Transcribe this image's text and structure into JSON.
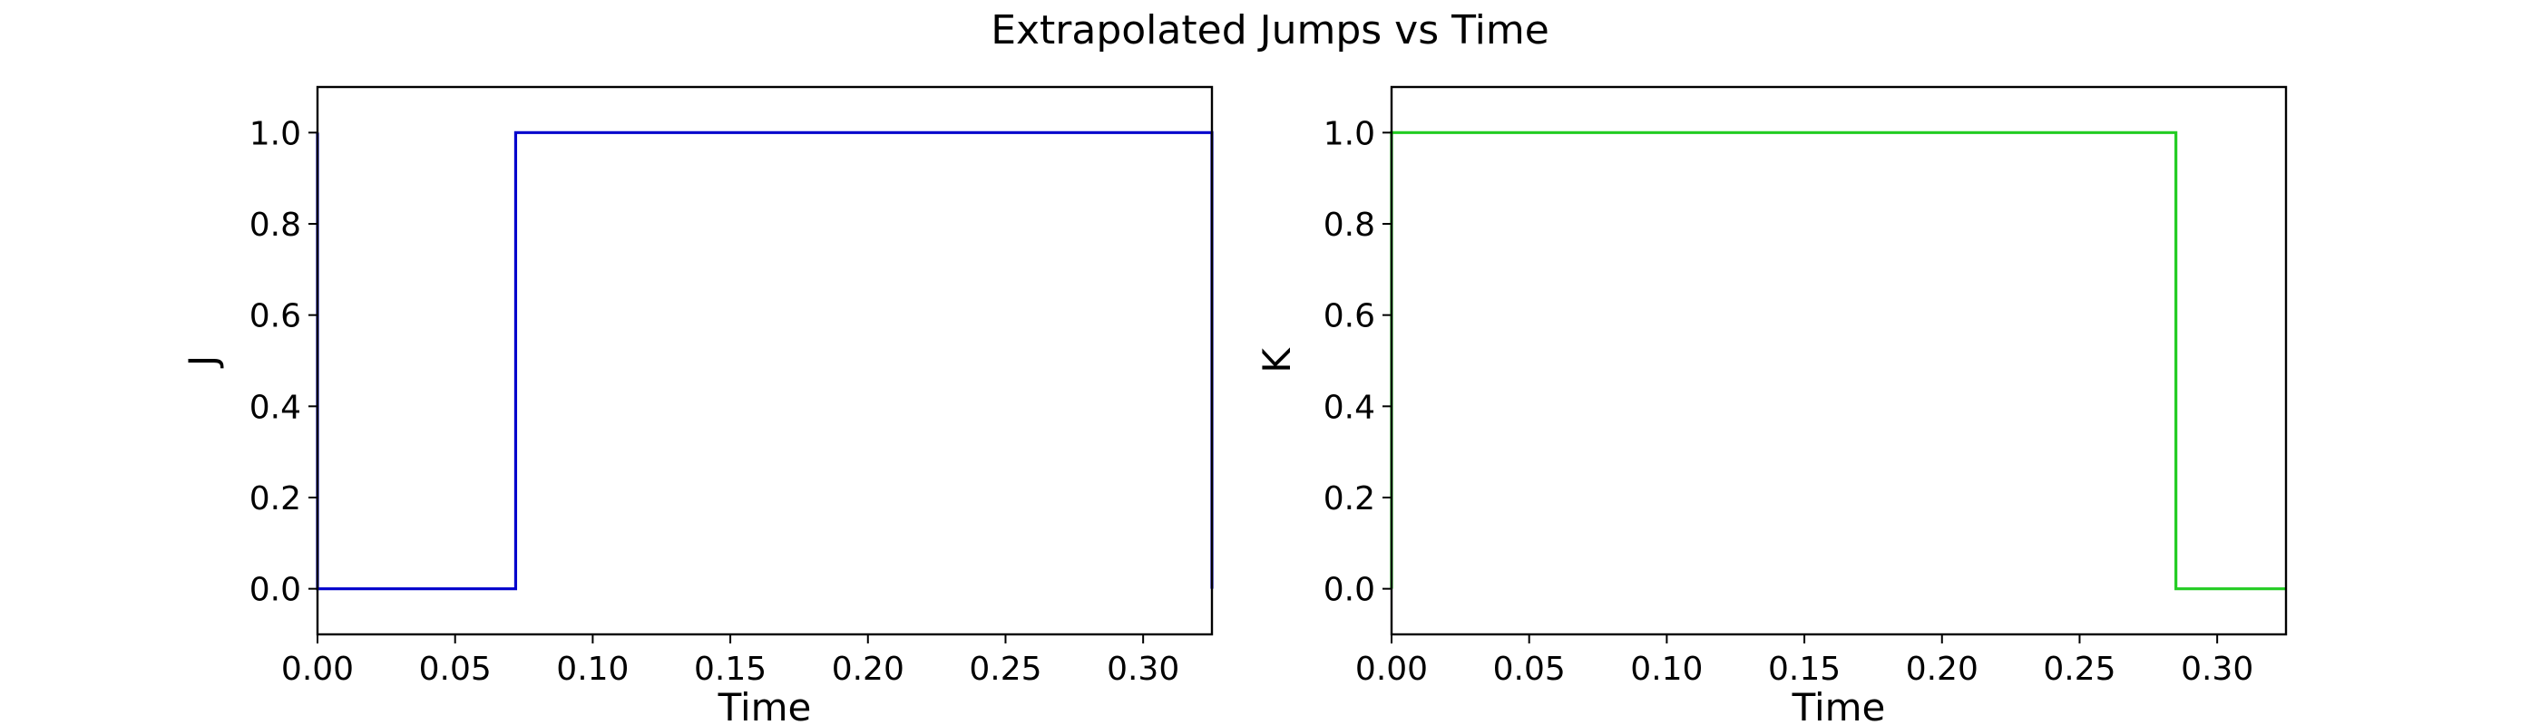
{
  "figure_title": "Extrapolated Jumps vs Time",
  "chart_data": [
    {
      "type": "line",
      "step": "post",
      "title": "",
      "xlabel": "Time",
      "ylabel": "J",
      "xlim": [
        0.0,
        0.325
      ],
      "ylim": [
        -0.1,
        1.1
      ],
      "xticks": [
        "0.00",
        "0.05",
        "0.10",
        "0.15",
        "0.20",
        "0.25",
        "0.30"
      ],
      "yticks": [
        "0.0",
        "0.2",
        "0.4",
        "0.6",
        "0.8",
        "1.0"
      ],
      "grid": false,
      "color": "#0000cc",
      "series": [
        {
          "x": [
            0.0,
            0.0,
            0.072,
            0.325,
            0.325
          ],
          "y": [
            1.0,
            0.0,
            1.0,
            1.0,
            0.0
          ]
        }
      ]
    },
    {
      "type": "line",
      "step": "post",
      "title": "",
      "xlabel": "Time",
      "ylabel": "K",
      "xlim": [
        0.0,
        0.325
      ],
      "ylim": [
        -0.1,
        1.1
      ],
      "xticks": [
        "0.00",
        "0.05",
        "0.10",
        "0.15",
        "0.20",
        "0.25",
        "0.30"
      ],
      "yticks": [
        "0.0",
        "0.2",
        "0.4",
        "0.6",
        "0.8",
        "1.0"
      ],
      "grid": false,
      "color": "#22cc22",
      "series": [
        {
          "x": [
            0.0,
            0.0,
            0.285,
            0.325
          ],
          "y": [
            0.0,
            1.0,
            0.0,
            0.0
          ]
        }
      ]
    }
  ]
}
